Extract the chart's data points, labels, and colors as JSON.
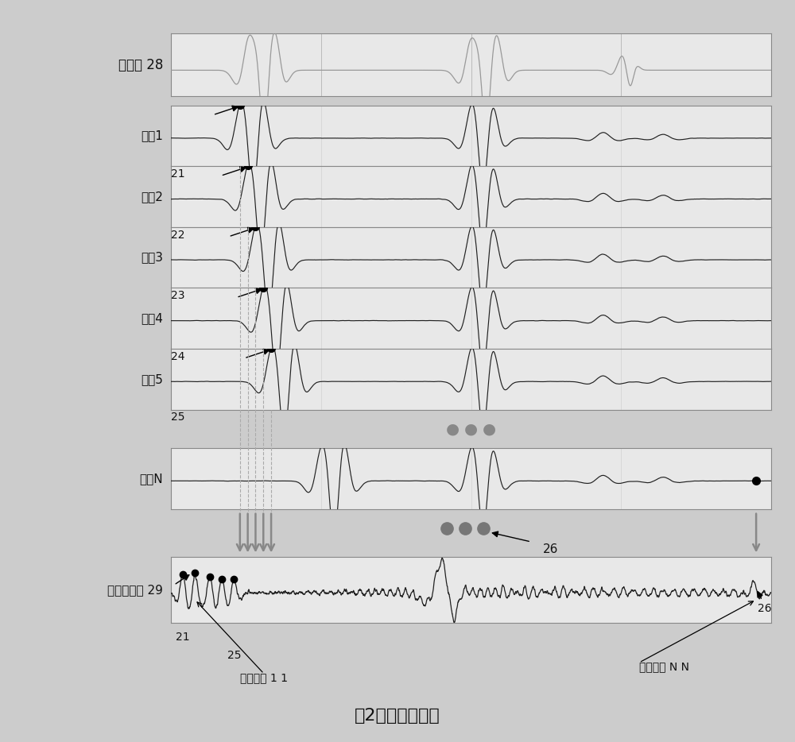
{
  "title": "图2（现有技术）",
  "title_fontsize": 16,
  "bg_color": "#cccccc",
  "panel_bg": "#e8e8e8",
  "text_color": "#111111",
  "signal_color": "#222222",
  "noiseless_color": "#aaaaaa",
  "labels_left": [
    "无噪声 28",
    "响劔1",
    "响劔2",
    "响劔3",
    "响劔4",
    "响劔5",
    "响劔N"
  ],
  "numbers_left": [
    "",
    "21",
    "22",
    "23",
    "24",
    "25",
    ""
  ],
  "bottom_label": "欠采样响劔 29",
  "from_resp1": "来自响劔 1",
  "from_respN": "来自响劔 N",
  "fig_caption": "图2（现有技术）"
}
